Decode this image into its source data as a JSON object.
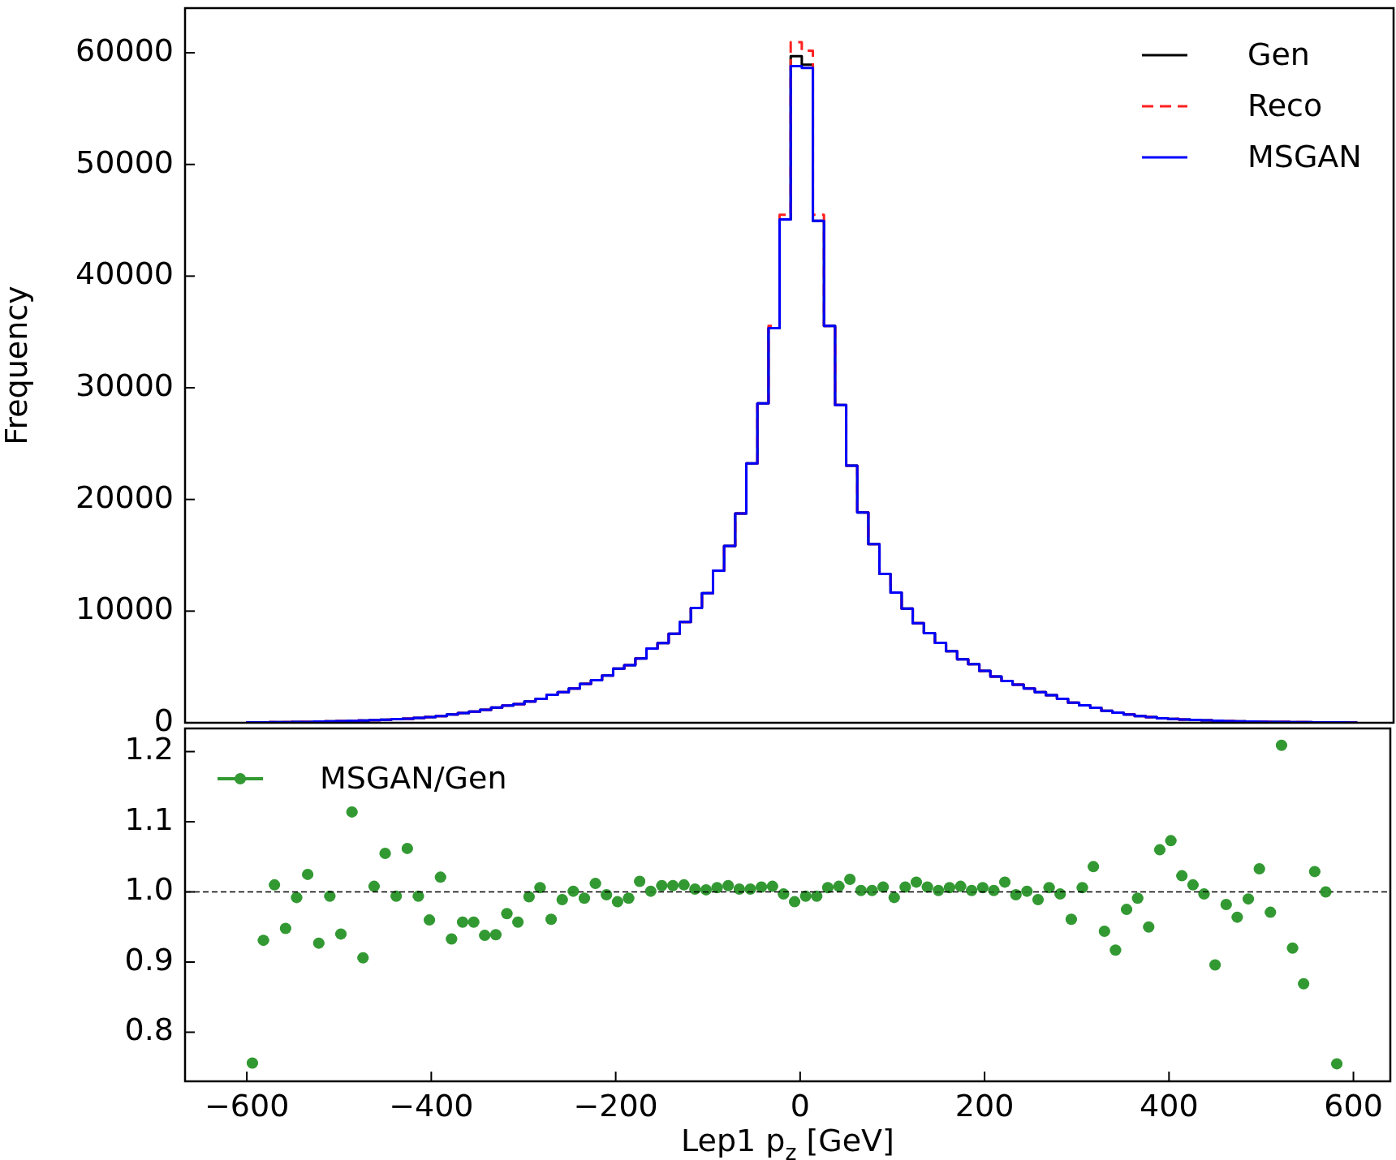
{
  "chart_data": [
    {
      "type": "histogram",
      "ylabel": "Frequency",
      "bins": [
        -600,
        -588,
        -576,
        -564,
        -552,
        -540,
        -528,
        -516,
        -504,
        -492,
        -480,
        -468,
        -456,
        -444,
        -432,
        -420,
        -408,
        -396,
        -384,
        -372,
        -360,
        -348,
        -336,
        -324,
        -312,
        -300,
        -288,
        -276,
        -264,
        -252,
        -240,
        -228,
        -216,
        -204,
        -192,
        -180,
        -168,
        -156,
        -144,
        -132,
        -120,
        -108,
        -96,
        -84,
        -72,
        -60,
        -48,
        -36,
        -24,
        -12,
        0,
        12,
        24,
        36,
        48,
        60,
        72,
        84,
        96,
        108,
        120,
        132,
        144,
        156,
        168,
        180,
        192,
        204,
        216,
        228,
        240,
        252,
        264,
        276,
        288,
        300,
        312,
        324,
        336,
        348,
        360,
        372,
        384,
        396,
        408,
        420,
        432,
        444,
        456,
        468,
        480,
        492,
        504,
        516,
        528,
        540,
        552,
        564,
        576,
        588,
        600
      ],
      "series": [
        {
          "name": "Gen",
          "color": "#000000",
          "line_style": "solid",
          "values": [
            30,
            40,
            50,
            60,
            70,
            80,
            100,
            120,
            140,
            170,
            200,
            240,
            280,
            320,
            370,
            430,
            500,
            600,
            740,
            870,
            1000,
            1170,
            1370,
            1540,
            1670,
            1910,
            2140,
            2510,
            2740,
            3070,
            3480,
            3810,
            4240,
            4850,
            5150,
            5760,
            6640,
            7140,
            7980,
            9020,
            10280,
            11610,
            13620,
            15830,
            18750,
            23220,
            28610,
            35340,
            45070,
            59690,
            58940,
            44950,
            35550,
            28450,
            23020,
            18840,
            16000,
            13330,
            11660,
            10230,
            8920,
            8020,
            7150,
            6420,
            5680,
            5250,
            4650,
            4140,
            3740,
            3410,
            3070,
            2740,
            2470,
            2140,
            1800,
            1570,
            1340,
            1070,
            900,
            740,
            600,
            500,
            400,
            340,
            290,
            250,
            210,
            180,
            150,
            130,
            110,
            90,
            80,
            70,
            60,
            50,
            40,
            30,
            30,
            20
          ]
        },
        {
          "name": "Reco",
          "color": "#ff2020",
          "line_style": "dashed",
          "values": [
            30,
            40,
            50,
            60,
            70,
            80,
            100,
            120,
            140,
            170,
            200,
            240,
            280,
            320,
            370,
            430,
            500,
            600,
            740,
            870,
            1000,
            1170,
            1370,
            1540,
            1670,
            1910,
            2140,
            2510,
            2740,
            3070,
            3480,
            3810,
            4240,
            4850,
            5150,
            5760,
            6640,
            7140,
            7980,
            9020,
            10280,
            11610,
            13620,
            15830,
            18750,
            23220,
            28610,
            35550,
            45490,
            60940,
            60190,
            45490,
            35550,
            28450,
            23020,
            18840,
            16000,
            13330,
            11660,
            10230,
            8920,
            8020,
            7150,
            6420,
            5680,
            5250,
            4650,
            4140,
            3740,
            3410,
            3070,
            2740,
            2470,
            2140,
            1800,
            1570,
            1340,
            1070,
            900,
            740,
            600,
            500,
            400,
            340,
            290,
            250,
            210,
            180,
            150,
            130,
            110,
            90,
            80,
            70,
            60,
            50,
            40,
            30,
            30,
            20
          ]
        },
        {
          "name": "MSGAN",
          "color": "#0000ff",
          "line_style": "solid",
          "values": [
            30,
            40,
            50,
            60,
            70,
            80,
            100,
            120,
            140,
            170,
            200,
            240,
            280,
            320,
            370,
            430,
            500,
            600,
            740,
            870,
            1000,
            1170,
            1370,
            1540,
            1670,
            1910,
            2140,
            2510,
            2740,
            3070,
            3480,
            3810,
            4240,
            4850,
            5150,
            5760,
            6640,
            7140,
            7980,
            9020,
            10280,
            11610,
            13620,
            15830,
            18750,
            23220,
            28610,
            35340,
            45070,
            58810,
            58650,
            44950,
            35550,
            28450,
            23020,
            18840,
            16000,
            13330,
            11660,
            10230,
            8920,
            8020,
            7150,
            6420,
            5680,
            5250,
            4650,
            4140,
            3740,
            3410,
            3070,
            2740,
            2470,
            2140,
            1800,
            1570,
            1340,
            1070,
            900,
            740,
            600,
            500,
            400,
            340,
            290,
            250,
            210,
            180,
            150,
            130,
            110,
            90,
            80,
            70,
            60,
            50,
            40,
            30,
            30,
            20
          ]
        }
      ],
      "xlim": [
        -667,
        640
      ],
      "ylim": [
        0,
        64000
      ],
      "yticks": [
        0,
        10000,
        20000,
        30000,
        40000,
        50000,
        60000
      ],
      "legend": "top right",
      "tick_labels": "y"
    },
    {
      "type": "scatter",
      "xlabel": "Lep1 p$_{z}$ [GeV]",
      "marker": "circle",
      "series": [
        {
          "name": "MSGAN/Gen",
          "color": "#339933",
          "x": [
            -594,
            -582,
            -570,
            -558,
            -546,
            -534,
            -522,
            -510,
            -498,
            -486,
            -474,
            -462,
            -450,
            -438,
            -426,
            -414,
            -402,
            -390,
            -378,
            -366,
            -354,
            -342,
            -330,
            -318,
            -306,
            -294,
            -282,
            -270,
            -258,
            -246,
            -234,
            -222,
            -210,
            -198,
            -186,
            -174,
            -162,
            -150,
            -138,
            -126,
            -114,
            -102,
            -90,
            -78,
            -66,
            -54,
            -42,
            -30,
            -18,
            -6,
            6,
            18,
            30,
            42,
            54,
            66,
            78,
            90,
            102,
            114,
            126,
            138,
            150,
            162,
            174,
            186,
            198,
            210,
            222,
            234,
            246,
            258,
            270,
            282,
            294,
            306,
            318,
            330,
            342,
            354,
            366,
            378,
            390,
            402,
            414,
            426,
            438,
            450,
            462,
            474,
            486,
            498,
            510,
            522,
            534,
            546,
            558,
            570,
            582
          ],
          "values": [
            0.756,
            0.931,
            1.01,
            0.948,
            0.992,
            1.025,
            0.927,
            0.994,
            0.94,
            1.114,
            0.906,
            1.008,
            1.055,
            0.994,
            1.062,
            0.994,
            0.96,
            1.021,
            0.933,
            0.957,
            0.957,
            0.938,
            0.939,
            0.969,
            0.957,
            0.993,
            1.006,
            0.961,
            0.989,
            1.001,
            0.991,
            1.012,
            0.996,
            0.986,
            0.991,
            1.015,
            1.001,
            1.009,
            1.009,
            1.01,
            1.004,
            1.003,
            1.006,
            1.009,
            1.004,
            1.004,
            1.007,
            1.008,
            0.997,
            0.986,
            0.994,
            0.994,
            1.006,
            1.008,
            1.018,
            1.002,
            1.002,
            1.007,
            0.992,
            1.007,
            1.014,
            1.007,
            1.002,
            1.006,
            1.008,
            1.002,
            1.006,
            1.002,
            1.014,
            0.996,
            1.001,
            0.989,
            1.006,
            0.997,
            0.961,
            1.006,
            1.036,
            0.944,
            0.917,
            0.975,
            0.991,
            0.95,
            1.06,
            1.073,
            1.023,
            1.01,
            0.997,
            0.896,
            0.982,
            0.964,
            0.99,
            1.033,
            0.971,
            1.209,
            0.92,
            0.869,
            1.029,
            1.0,
            0.755
          ],
          "xerrors": [
            6,
            6,
            6,
            6,
            6,
            6,
            6,
            6,
            6,
            6,
            6,
            6,
            6,
            6,
            6,
            6,
            6,
            6,
            6,
            6,
            6,
            6,
            6,
            6,
            6,
            6,
            6,
            6,
            6,
            6,
            6,
            6,
            6,
            6,
            6,
            6,
            6,
            6,
            6,
            6,
            6,
            6,
            6,
            6,
            6,
            6,
            6,
            6,
            6,
            6,
            6,
            6,
            6,
            6,
            6,
            6,
            6,
            6,
            6,
            6,
            6,
            6,
            6,
            6,
            6,
            6,
            6,
            6,
            6,
            6,
            6,
            6,
            6,
            6,
            6,
            6,
            6,
            6,
            6,
            6,
            6,
            6,
            6,
            6,
            6,
            6,
            6,
            6,
            6,
            6,
            6,
            6,
            6,
            6,
            6,
            6,
            6,
            6,
            6
          ]
        }
      ],
      "ref_lines": [
        {
          "axis": "y",
          "value": 1,
          "color": "#000000",
          "line_style": "dashed"
        }
      ],
      "xlim": [
        -667,
        640
      ],
      "xticks": [
        {
          "value": -600,
          "label": "−600"
        },
        {
          "value": -400,
          "label": "−400"
        },
        {
          "value": -200,
          "label": "−200"
        },
        0,
        200,
        400,
        600
      ],
      "ylim": [
        0.73,
        1.233
      ],
      "yticks": [
        0.8,
        0.9,
        {
          "value": 1,
          "label": "1.0"
        },
        1.1,
        1.2
      ],
      "legend": "top left"
    }
  ]
}
